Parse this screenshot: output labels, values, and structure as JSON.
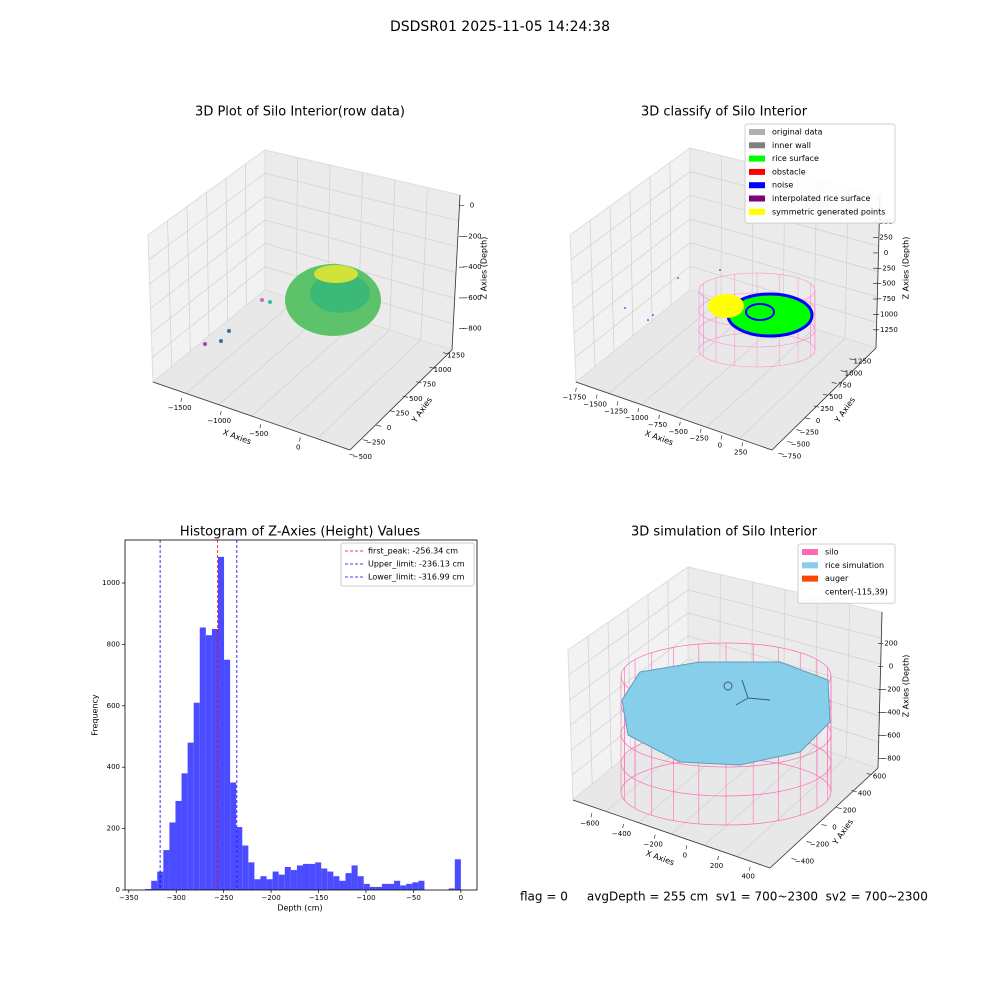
{
  "suptitle": "DSDSR01 2025-11-05 14:24:38",
  "status_text": "flag = 0     avgDepth = 255 cm  sv1 = 700~2300  sv2 = 700~2300",
  "chart_data": [
    {
      "type": "scatter3d",
      "title": "3D Plot of Silo Interior(row data)",
      "xlabel": "X Axies",
      "ylabel": "Y Axies",
      "zlabel": "Z Axies (Depth)",
      "xlim": [
        -1800,
        250
      ],
      "ylim": [
        -600,
        1400
      ],
      "zlim": [
        -900,
        50
      ],
      "xticks": [
        {
          "value": -1500,
          "label": "−1500"
        },
        {
          "value": -1000,
          "label": "−1000"
        },
        {
          "value": -500,
          "label": "−500"
        },
        0
      ],
      "yticks": [
        {
          "value": -500,
          "label": "−500"
        },
        {
          "value": -250,
          "label": "−250"
        },
        0,
        250,
        500,
        750,
        1000,
        1250
      ],
      "zticks": [
        0,
        {
          "value": -200,
          "label": "−200"
        },
        {
          "value": -400,
          "label": "−400"
        },
        {
          "value": -600,
          "label": "−600"
        },
        {
          "value": -800,
          "label": "−800"
        }
      ]
    },
    {
      "type": "scatter3d",
      "title": "3D classify of Silo Interior",
      "xlabel": "X Axies",
      "ylabel": "Y Axies",
      "zlabel": "Z Axies (Depth)",
      "xlim": [
        -1850,
        350
      ],
      "ylim": [
        -850,
        1350
      ],
      "zlim": [
        -1400,
        600
      ],
      "xticks": [
        {
          "value": -1750,
          "label": "−1750"
        },
        {
          "value": -1500,
          "label": "−1500"
        },
        {
          "value": -1250,
          "label": "−1250"
        },
        {
          "value": -1000,
          "label": "−1000"
        },
        {
          "value": -750,
          "label": "−750"
        },
        {
          "value": -500,
          "label": "−500"
        },
        {
          "value": -250,
          "label": "−250"
        },
        0,
        250
      ],
      "yticks": [
        {
          "value": -750,
          "label": "−750"
        },
        {
          "value": -500,
          "label": "−500"
        },
        {
          "value": -250,
          "label": "−250"
        },
        0,
        250,
        500,
        750,
        1000,
        1250
      ],
      "zticks": [
        500,
        250,
        0,
        {
          "value": -250,
          "label": "−250"
        },
        {
          "value": -500,
          "label": "−500"
        },
        {
          "value": -750,
          "label": "−750"
        },
        {
          "value": -1000,
          "label": "−1000"
        },
        {
          "value": -1250,
          "label": "−1250"
        }
      ],
      "legend": [
        {
          "name": "original data",
          "color": "#b0b0b0"
        },
        {
          "name": "inner wall",
          "color": "#808080"
        },
        {
          "name": "rice surface",
          "color": "#00ff00"
        },
        {
          "name": "obstacle",
          "color": "#ff0000"
        },
        {
          "name": "noise",
          "color": "#0000ff"
        },
        {
          "name": "interpolated rice surface",
          "color": "#800080"
        },
        {
          "name": "symmetric generated points",
          "color": "#ffff00"
        }
      ]
    },
    {
      "type": "histogram",
      "title": "Histogram of Z-Axies (Height) Values",
      "xlabel": "Depth (cm)",
      "ylabel": "Frequency",
      "color": "#4b4bff",
      "xlim": [
        -354,
        17
      ],
      "ylim": [
        0,
        1140
      ],
      "xticks": [
        {
          "value": -350,
          "label": "−350"
        },
        {
          "value": -300,
          "label": "−300"
        },
        {
          "value": -250,
          "label": "−250"
        },
        {
          "value": -200,
          "label": "−200"
        },
        {
          "value": -150,
          "label": "−150"
        },
        {
          "value": -100,
          "label": "−100"
        },
        {
          "value": -50,
          "label": "−50"
        },
        0
      ],
      "yticks": [
        0,
        200,
        400,
        600,
        800,
        1000
      ],
      "bins": [
        -339.2,
        -332.8,
        -326.4,
        -320,
        -313.6,
        -307.2,
        -300.8,
        -294.4,
        -288,
        -281.6,
        -275.2,
        -268.8,
        -262.4,
        -256,
        -249.6,
        -243.2,
        -236.8,
        -230.4,
        -224,
        -217.6,
        -211.2,
        -204.8,
        -198.4,
        -192,
        -185.6,
        -179.2,
        -172.8,
        -166.4,
        -160,
        -153.6,
        -147.2,
        -140.8,
        -134.4,
        -128,
        -121.6,
        -115.2,
        -108.8,
        -102.4,
        -96,
        -89.6,
        -83.2,
        -76.8,
        -70.4,
        -64,
        -57.6,
        -51.2,
        -44.8,
        -38.4,
        -32,
        -25.6,
        -19.2,
        -12.8,
        -6.4,
        0
      ],
      "values": [
        0,
        3,
        30,
        60,
        130,
        220,
        290,
        380,
        480,
        610,
        855,
        830,
        850,
        1085,
        750,
        350,
        205,
        145,
        90,
        35,
        45,
        35,
        60,
        50,
        75,
        65,
        80,
        85,
        85,
        90,
        70,
        60,
        45,
        30,
        55,
        80,
        45,
        20,
        10,
        10,
        20,
        20,
        30,
        15,
        20,
        25,
        30,
        0,
        0,
        0,
        0,
        5,
        100
      ],
      "vlines": [
        {
          "label": "first_peak: -256.34 cm",
          "value": -256.34,
          "color": "#ff0000"
        },
        {
          "label": "Upper_limit: -236.13 cm",
          "value": -236.13,
          "color": "#0000ff"
        },
        {
          "label": "Lower_limit: -316.99 cm",
          "value": -316.99,
          "color": "#0000ff"
        }
      ]
    },
    {
      "type": "surface3d",
      "title": "3D simulation of Silo Interior",
      "xlabel": "X Axies",
      "ylabel": "Y Axies",
      "zlabel": "Z Axies (Depth)",
      "xlim": [
        -700,
        500
      ],
      "ylim": [
        -500,
        700
      ],
      "zlim": [
        -900,
        300
      ],
      "xticks": [
        {
          "value": -600,
          "label": "−600"
        },
        {
          "value": -400,
          "label": "−400"
        },
        {
          "value": -200,
          "label": "−200"
        },
        0,
        200,
        400
      ],
      "yticks": [
        {
          "value": -400,
          "label": "−400"
        },
        {
          "value": -200,
          "label": "−200"
        },
        0,
        200,
        400,
        600
      ],
      "zticks": [
        200,
        0,
        {
          "value": -200,
          "label": "−200"
        },
        {
          "value": -400,
          "label": "−400"
        },
        {
          "value": -600,
          "label": "−600"
        },
        {
          "value": -800,
          "label": "−800"
        }
      ],
      "legend": [
        {
          "name": "silo",
          "color": "#ff69b4"
        },
        {
          "name": "rice simulation",
          "color": "#87ceeb"
        },
        {
          "name": "auger",
          "color": "#ff4500"
        },
        {
          "name": "center(-115,39)"
        }
      ]
    }
  ]
}
